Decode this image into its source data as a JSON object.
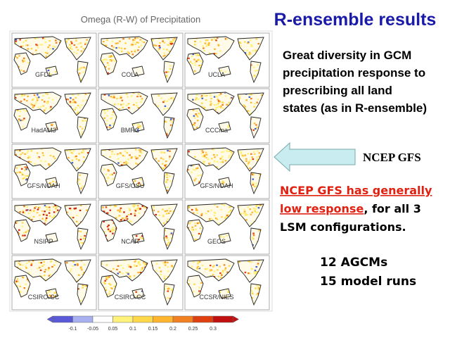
{
  "header": {
    "title": "R-ensemble results"
  },
  "figure": {
    "title": "Omega (R-W) of Precipitation",
    "panels": [
      "GFDL",
      "COLA",
      "UCLA",
      "HadAM3",
      "BMRC",
      "CCCma",
      "GFS/NOAH",
      "GFS/OSU",
      "GFS/NOAH",
      "NSIPP",
      "NCAR",
      "GEOS",
      "CSIRO-CC",
      "CSIRO-CC",
      "CCSR/NIES"
    ],
    "colorbar": {
      "ticks": [
        "-0.1",
        "-0.05",
        "0.05",
        "0.1",
        "0.15",
        "0.2",
        "0.25",
        "0.3"
      ]
    }
  },
  "notes": {
    "summary": [
      "Great diversity in GCM",
      "precipitation response to",
      "prescribing all land",
      "states (as in R-ensemble)"
    ],
    "arrow_label": "NCEP GFS",
    "highlight": {
      "line1": "NCEP GFS has generally",
      "line2_red": "low response",
      "line2_rest": ", for all 3",
      "line3": "LSM configurations."
    },
    "counts": [
      "12 AGCMs",
      "15 model runs"
    ]
  }
}
